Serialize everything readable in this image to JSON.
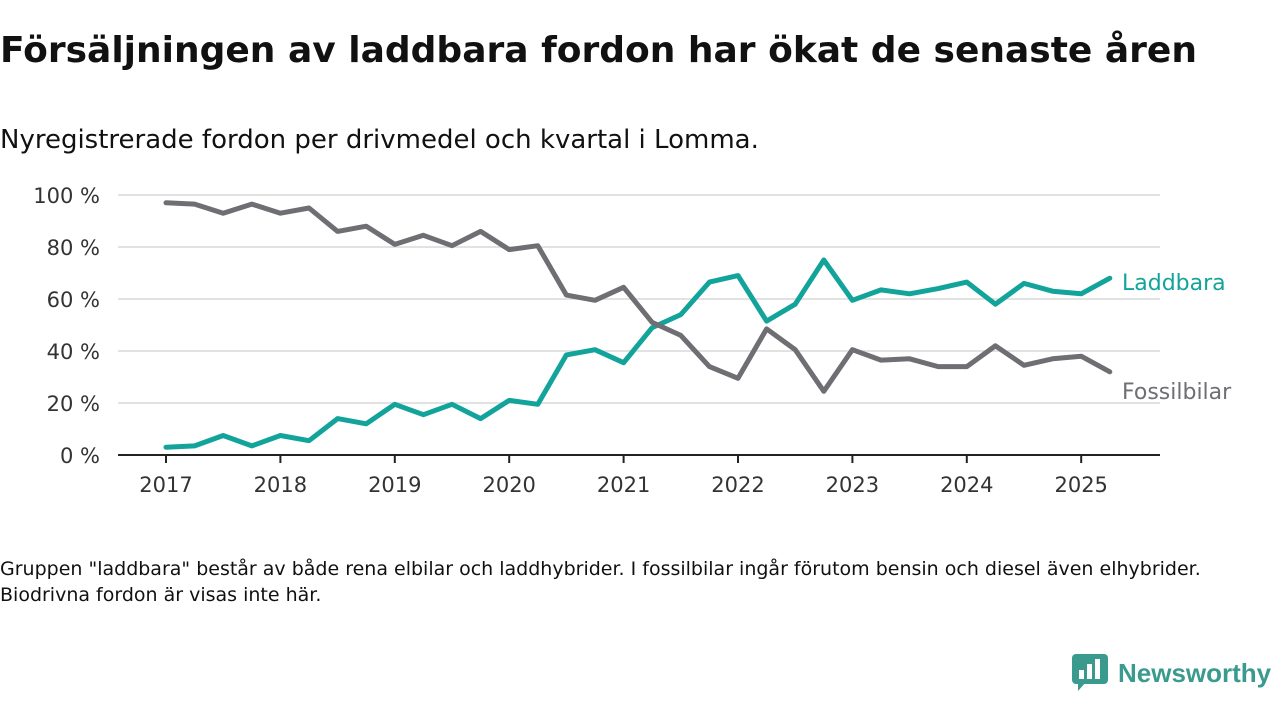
{
  "header": {
    "title": "Försäljningen av laddbara fordon har ökat de senaste åren",
    "subtitle": "Nyregistrerade fordon per drivmedel och kvartal i Lomma."
  },
  "footer": {
    "note": "Gruppen \"laddbara\" består av både rena elbilar och laddhybrider. I fossilbilar ingår förutom bensin och diesel även elhybrider. Biodrivna fordon är visas inte här.",
    "brand": "Newsworthy"
  },
  "colors": {
    "laddbara": "#12a39b",
    "fossilbilar": "#6e6e73",
    "grid": "#d9d9d9",
    "brand": "#3a9a8e"
  },
  "chart_data": {
    "type": "line",
    "x": [
      "2017 Q1",
      "2017 Q2",
      "2017 Q3",
      "2017 Q4",
      "2018 Q1",
      "2018 Q2",
      "2018 Q3",
      "2018 Q4",
      "2019 Q1",
      "2019 Q2",
      "2019 Q3",
      "2019 Q4",
      "2020 Q1",
      "2020 Q2",
      "2020 Q3",
      "2020 Q4",
      "2021 Q1",
      "2021 Q2",
      "2021 Q3",
      "2021 Q4",
      "2022 Q1",
      "2022 Q2",
      "2022 Q3",
      "2022 Q4",
      "2023 Q1",
      "2023 Q2",
      "2023 Q3",
      "2023 Q4",
      "2024 Q1",
      "2024 Q2",
      "2024 Q3",
      "2024 Q4",
      "2025 Q1",
      "2025 Q2"
    ],
    "x_ticks": [
      "2017",
      "2018",
      "2019",
      "2020",
      "2021",
      "2022",
      "2023",
      "2024",
      "2025"
    ],
    "y_ticks": [
      "0 %",
      "20 %",
      "40 %",
      "60 %",
      "80 %",
      "100 %"
    ],
    "ylim": [
      0,
      100
    ],
    "y_unit": "%",
    "grid": true,
    "legend": "direct labels at right end",
    "series": [
      {
        "name": "Laddbara",
        "key": "laddbara",
        "values": [
          3,
          3.5,
          7.5,
          3.5,
          7.5,
          5.5,
          14,
          12,
          19.5,
          15.5,
          19.5,
          14,
          21,
          19.5,
          38.5,
          40.5,
          35.5,
          49,
          54,
          66.5,
          69,
          51.5,
          58,
          75,
          59.5,
          63.5,
          62,
          64,
          66.5,
          58,
          66,
          63,
          62,
          68
        ]
      },
      {
        "name": "Fossilbilar",
        "key": "fossilbilar",
        "values": [
          97,
          96.5,
          93,
          96.5,
          93,
          95,
          86,
          88,
          81,
          84.5,
          80.5,
          86,
          79,
          80.5,
          61.5,
          59.5,
          64.5,
          51,
          46,
          34,
          29.5,
          48.5,
          40.5,
          24.5,
          40.5,
          36.5,
          37,
          34,
          34,
          42,
          34.5,
          37,
          38,
          32
        ]
      }
    ]
  }
}
